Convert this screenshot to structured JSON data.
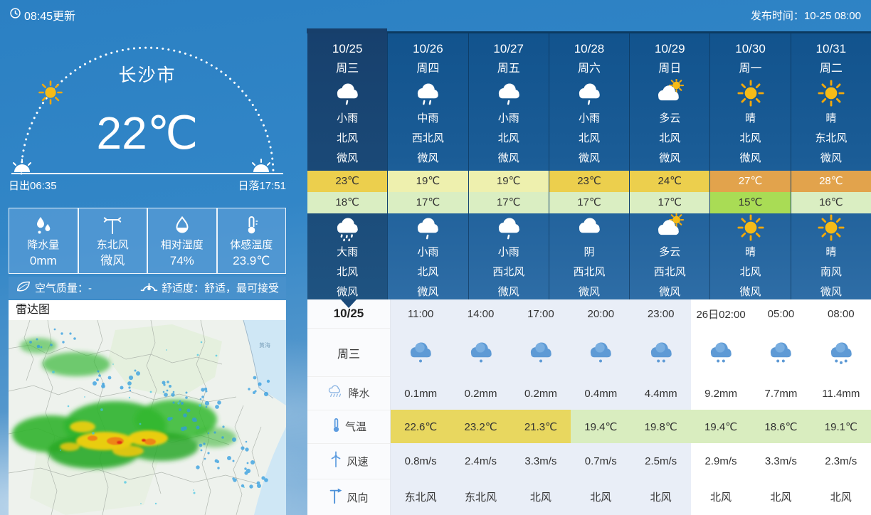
{
  "header": {
    "updated": "08:45更新",
    "published": "发布时间：10-25 08:00"
  },
  "current": {
    "city": "长沙市",
    "temp": "22℃",
    "sunrise": "日出06:35",
    "sunset": "日落17:51"
  },
  "stats": [
    {
      "icon": "raindrops-icon",
      "label": "降水量",
      "value": "0mm"
    },
    {
      "icon": "wind-vane-icon",
      "label": "东北风",
      "value": "微风"
    },
    {
      "icon": "humidity-icon",
      "label": "相对湿度",
      "value": "74%"
    },
    {
      "icon": "feels-like-icon",
      "label": "体感温度",
      "value": "23.9℃"
    }
  ],
  "air": {
    "quality": "空气质量：-",
    "comfort": "舒适度：舒适，最可接受"
  },
  "radar": {
    "title": "雷达图",
    "sea_label": "黄海"
  },
  "forecast": {
    "days": [
      {
        "date": "10/25",
        "weekday": "周三",
        "selected": true,
        "day": {
          "icon": "rain-light-icon",
          "cond": "小雨",
          "wind": "北风",
          "power": "微风"
        },
        "high": "23℃",
        "high_color": "gold",
        "low": "18℃",
        "low_color": "pale_green",
        "night": {
          "icon": "rain-heavy-icon",
          "cond": "大雨",
          "wind": "北风",
          "power": "微风"
        }
      },
      {
        "date": "10/26",
        "weekday": "周四",
        "selected": false,
        "day": {
          "icon": "rain-mid-icon",
          "cond": "中雨",
          "wind": "西北风",
          "power": "微风"
        },
        "high": "19℃",
        "high_color": "pale_yellow",
        "low": "17℃",
        "low_color": "pale_green",
        "night": {
          "icon": "rain-light-icon",
          "cond": "小雨",
          "wind": "北风",
          "power": "微风"
        }
      },
      {
        "date": "10/27",
        "weekday": "周五",
        "selected": false,
        "day": {
          "icon": "rain-light-icon",
          "cond": "小雨",
          "wind": "北风",
          "power": "微风"
        },
        "high": "19℃",
        "high_color": "pale_yellow",
        "low": "17℃",
        "low_color": "pale_green",
        "night": {
          "icon": "rain-light-icon",
          "cond": "小雨",
          "wind": "西北风",
          "power": "微风"
        }
      },
      {
        "date": "10/28",
        "weekday": "周六",
        "selected": false,
        "day": {
          "icon": "rain-light-icon",
          "cond": "小雨",
          "wind": "北风",
          "power": "微风"
        },
        "high": "23℃",
        "high_color": "gold",
        "low": "17℃",
        "low_color": "pale_green",
        "night": {
          "icon": "cloud-icon",
          "cond": "阴",
          "wind": "西北风",
          "power": "微风"
        }
      },
      {
        "date": "10/29",
        "weekday": "周日",
        "selected": false,
        "day": {
          "icon": "cloud-sun-icon",
          "cond": "多云",
          "wind": "北风",
          "power": "微风"
        },
        "high": "24℃",
        "high_color": "gold",
        "low": "17℃",
        "low_color": "pale_green",
        "night": {
          "icon": "cloud-sun-icon",
          "cond": "多云",
          "wind": "西北风",
          "power": "微风"
        }
      },
      {
        "date": "10/30",
        "weekday": "周一",
        "selected": false,
        "day": {
          "icon": "sun-icon",
          "cond": "晴",
          "wind": "北风",
          "power": "微风"
        },
        "high": "27℃",
        "high_color": "orange",
        "low": "15℃",
        "low_color": "bright_green",
        "night": {
          "icon": "sun-icon",
          "cond": "晴",
          "wind": "北风",
          "power": "微风"
        }
      },
      {
        "date": "10/31",
        "weekday": "周二",
        "selected": false,
        "day": {
          "icon": "sun-icon",
          "cond": "晴",
          "wind": "东北风",
          "power": "微风"
        },
        "high": "28℃",
        "high_color": "orange",
        "low": "16℃",
        "low_color": "pale_green",
        "night": {
          "icon": "sun-icon",
          "cond": "晴",
          "wind": "南风",
          "power": "微风"
        }
      }
    ]
  },
  "hourly": {
    "date": "10/25",
    "weekday": "周三",
    "row_labels": {
      "precip": "降水",
      "temp": "气温",
      "wind_speed": "风速",
      "wind_dir": "风向"
    },
    "columns": [
      {
        "time": "11:00",
        "icon": "blue-rain-1-icon",
        "precip": "0.1mm",
        "temp": "22.6℃",
        "temp_color": "gold_soft",
        "speed": "0.8m/s",
        "dir": "东北风",
        "shaded": true
      },
      {
        "time": "14:00",
        "icon": "blue-rain-1-icon",
        "precip": "0.2mm",
        "temp": "23.2℃",
        "temp_color": "gold_soft",
        "speed": "2.4m/s",
        "dir": "东北风",
        "shaded": true
      },
      {
        "time": "17:00",
        "icon": "blue-rain-1-icon",
        "precip": "0.2mm",
        "temp": "21.3℃",
        "temp_color": "gold_soft",
        "speed": "3.3m/s",
        "dir": "北风",
        "shaded": true
      },
      {
        "time": "20:00",
        "icon": "blue-rain-1-icon",
        "precip": "0.4mm",
        "temp": "19.4℃",
        "temp_color": "hour_pale_green",
        "speed": "0.7m/s",
        "dir": "北风",
        "shaded": true
      },
      {
        "time": "23:00",
        "icon": "blue-rain-2-icon",
        "precip": "4.4mm",
        "temp": "19.8℃",
        "temp_color": "hour_pale_green",
        "speed": "2.5m/s",
        "dir": "北风",
        "shaded": true
      },
      {
        "time": "26日02:00",
        "icon": "blue-rain-2-icon",
        "precip": "9.2mm",
        "temp": "19.4℃",
        "temp_color": "hour_pale_green",
        "speed": "2.9m/s",
        "dir": "北风",
        "shaded": false
      },
      {
        "time": "05:00",
        "icon": "blue-rain-2-icon",
        "precip": "7.7mm",
        "temp": "18.6℃",
        "temp_color": "hour_pale_green",
        "speed": "3.3m/s",
        "dir": "北风",
        "shaded": false
      },
      {
        "time": "08:00",
        "icon": "blue-rain-3-icon",
        "precip": "11.4mm",
        "temp": "19.1℃",
        "temp_color": "hour_pale_green",
        "speed": "2.3m/s",
        "dir": "北风",
        "shaded": false
      }
    ]
  },
  "colors": {
    "accent_navy": "#1b4a7a",
    "gold": "#eccf4d",
    "pale_yellow": "#eef0ae",
    "orange": "#e2a34c",
    "pale_green": "#daeec2",
    "bright_green": "#a9dc55",
    "gold_soft": "#e8d75f",
    "hour_pale_green": "#d9edbf",
    "shaded_column": "#e9eef7",
    "orange_text": "#ffffff",
    "temp_text": "#333333"
  }
}
